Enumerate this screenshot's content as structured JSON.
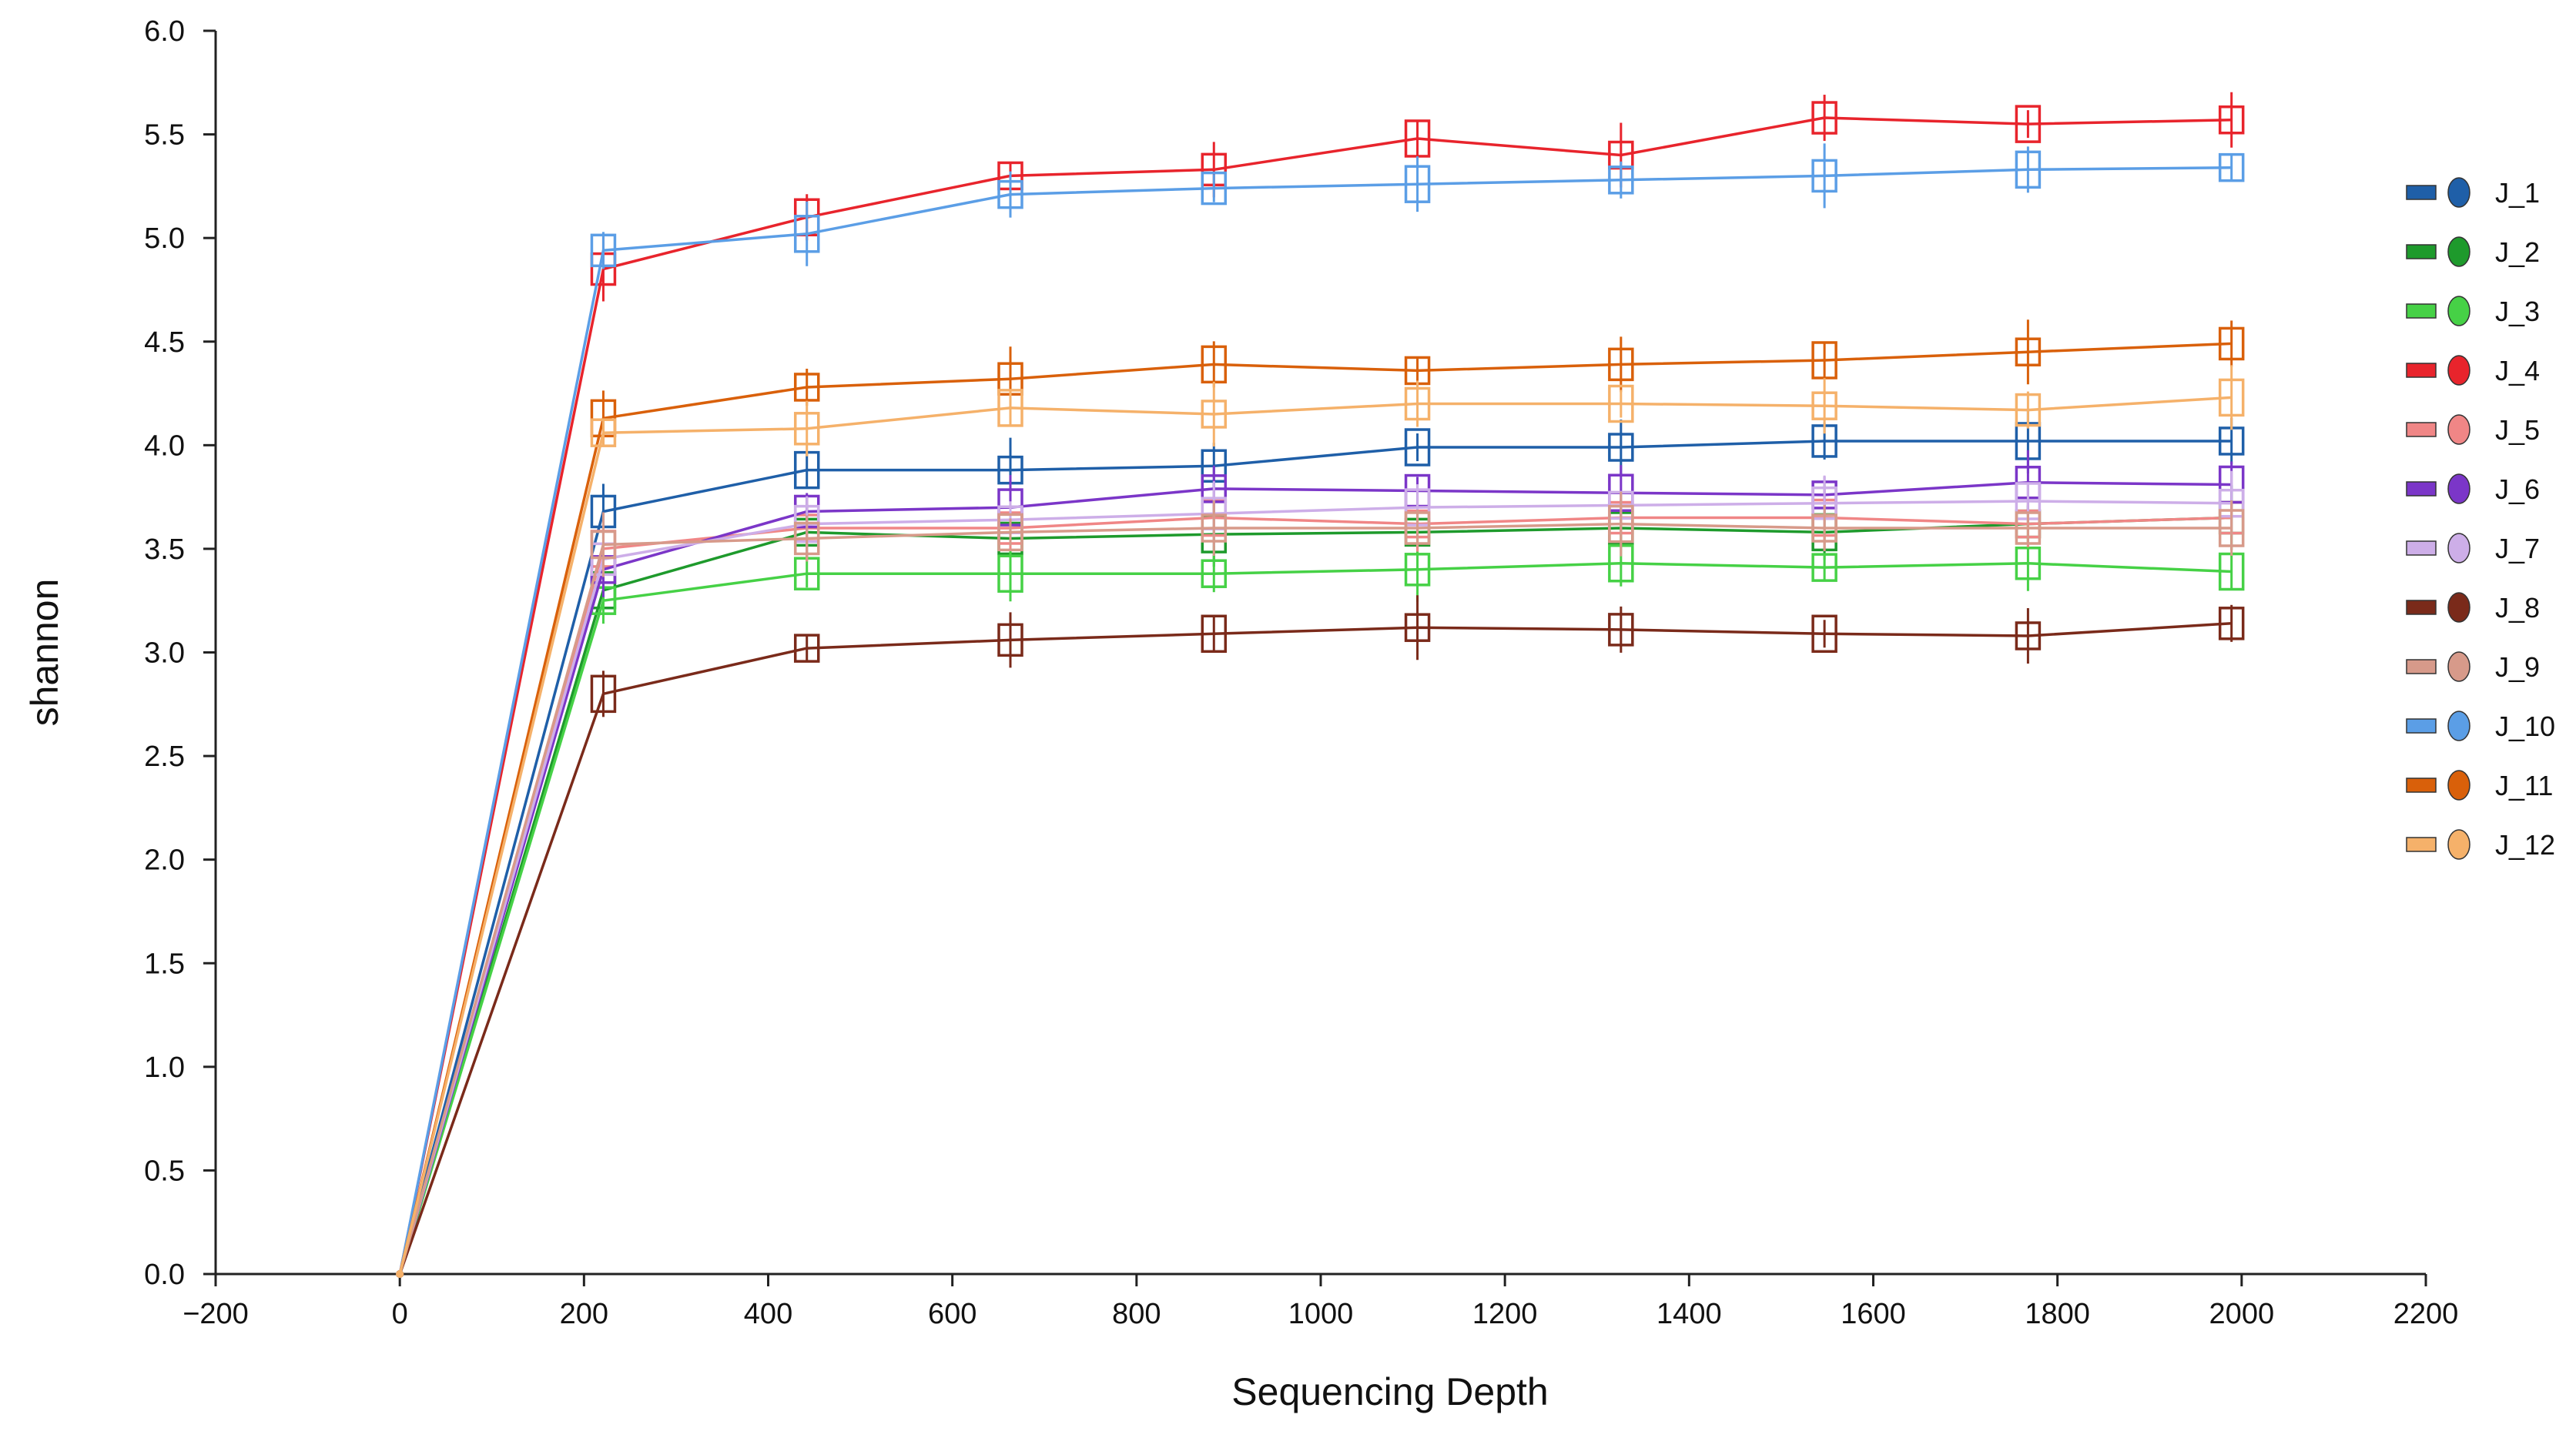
{
  "chart_data": {
    "type": "line",
    "title": "",
    "xlabel": "Sequencing Depth",
    "ylabel": "shannon",
    "xlim": [
      -200,
      2200
    ],
    "ylim": [
      0,
      6
    ],
    "xticks": [
      -200,
      0,
      200,
      400,
      600,
      800,
      1000,
      1200,
      1400,
      1600,
      1800,
      2000,
      2200
    ],
    "xtick_labels": [
      "−200",
      "0",
      "200",
      "400",
      "600",
      "800",
      "1000",
      "1200",
      "1400",
      "1600",
      "1800",
      "2000",
      "2200"
    ],
    "yticks": [
      0,
      0.5,
      1,
      1.5,
      2,
      2.5,
      3,
      3.5,
      4,
      4.5,
      5,
      5.5,
      6
    ],
    "ytick_labels": [
      "0.0",
      "0.5",
      "1.0",
      "1.5",
      "2.0",
      "2.5",
      "3.0",
      "3.5",
      "4.0",
      "4.5",
      "5.0",
      "5.5",
      "6.0"
    ],
    "grid": false,
    "legend_position": "right",
    "x": [
      0,
      221,
      442,
      663,
      884,
      1105,
      1326,
      1547,
      1768,
      1989
    ],
    "series": [
      {
        "name": "J_1",
        "color": "#1f5fa8",
        "values": [
          0,
          3.68,
          3.88,
          3.88,
          3.9,
          3.99,
          3.99,
          4.02,
          4.02,
          4.02
        ]
      },
      {
        "name": "J_2",
        "color": "#1e9a2c",
        "values": [
          0,
          3.3,
          3.58,
          3.55,
          3.57,
          3.58,
          3.6,
          3.58,
          3.62,
          3.65
        ]
      },
      {
        "name": "J_3",
        "color": "#46d146",
        "values": [
          0,
          3.25,
          3.38,
          3.38,
          3.38,
          3.4,
          3.43,
          3.41,
          3.43,
          3.39
        ]
      },
      {
        "name": "J_4",
        "color": "#e8242c",
        "values": [
          0,
          4.85,
          5.1,
          5.3,
          5.33,
          5.48,
          5.4,
          5.58,
          5.55,
          5.57
        ]
      },
      {
        "name": "J_5",
        "color": "#f08686",
        "values": [
          0,
          3.5,
          3.6,
          3.6,
          3.65,
          3.62,
          3.65,
          3.65,
          3.62,
          3.65
        ]
      },
      {
        "name": "J_6",
        "color": "#7b36c8",
        "values": [
          0,
          3.4,
          3.68,
          3.7,
          3.79,
          3.78,
          3.77,
          3.76,
          3.82,
          3.81
        ]
      },
      {
        "name": "J_7",
        "color": "#cdaee8",
        "values": [
          0,
          3.45,
          3.62,
          3.64,
          3.67,
          3.7,
          3.71,
          3.72,
          3.73,
          3.72
        ]
      },
      {
        "name": "J_8",
        "color": "#7a2a1a",
        "values": [
          0,
          2.8,
          3.02,
          3.06,
          3.09,
          3.12,
          3.11,
          3.09,
          3.08,
          3.14
        ]
      },
      {
        "name": "J_9",
        "color": "#d79a8a",
        "values": [
          0,
          3.52,
          3.55,
          3.58,
          3.6,
          3.6,
          3.62,
          3.6,
          3.6,
          3.6
        ]
      },
      {
        "name": "J_10",
        "color": "#5b9ee6",
        "values": [
          0,
          4.94,
          5.02,
          5.21,
          5.24,
          5.26,
          5.28,
          5.3,
          5.33,
          5.34
        ]
      },
      {
        "name": "J_11",
        "color": "#d9600a",
        "values": [
          0,
          4.13,
          4.28,
          4.32,
          4.39,
          4.36,
          4.39,
          4.41,
          4.45,
          4.49
        ]
      },
      {
        "name": "J_12",
        "color": "#f5b16a",
        "values": [
          0,
          4.06,
          4.08,
          4.18,
          4.15,
          4.2,
          4.2,
          4.19,
          4.17,
          4.23
        ]
      }
    ]
  }
}
